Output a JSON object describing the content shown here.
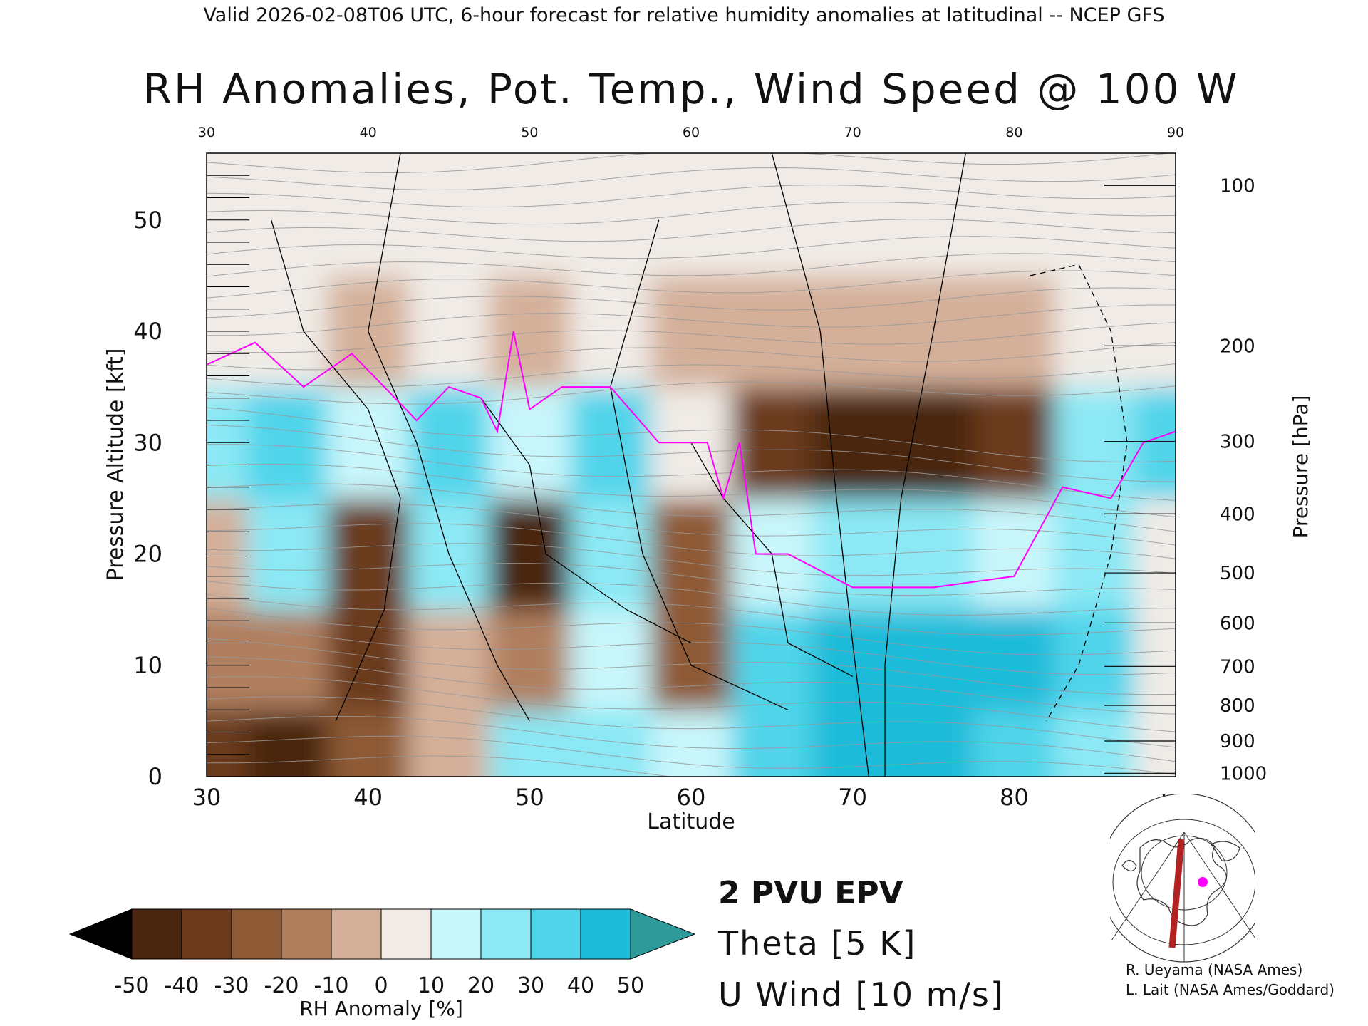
{
  "header": {
    "valid_line": "Valid 2026-02-08T06 UTC, 6-hour forecast for relative humidity anomalies at latitudinal -- NCEP GFS",
    "title": "RH Anomalies, Pot. Temp., Wind Speed @ 100 W"
  },
  "colors": {
    "dry_strong": "#000000",
    "dry": "#6b3a1c",
    "dry_light": "#c89c7c",
    "neutral": "#eef2f0",
    "moist_light": "#b8f2f8",
    "moist": "#4fd4ea",
    "moist_strong": "#0fa6c9",
    "epv": "#ff00ff",
    "theta": "#999999",
    "uwind": "#000000"
  },
  "chart_data": {
    "type": "heatmap",
    "xlabel": "Latitude",
    "ylabel": "Pressure Altitude [kft]",
    "y2label": "Pressure [hPa]",
    "xlim": [
      30,
      90
    ],
    "ylim": [
      0,
      56
    ],
    "x_ticks": [
      30,
      40,
      50,
      60,
      70,
      80,
      90
    ],
    "y_ticks": [
      0,
      10,
      20,
      30,
      40,
      50
    ],
    "pressure_ticks": [
      {
        "label": "100",
        "kft": 53.1
      },
      {
        "label": "200",
        "kft": 38.7
      },
      {
        "label": "300",
        "kft": 30.1
      },
      {
        "label": "400",
        "kft": 23.6
      },
      {
        "label": "500",
        "kft": 18.3
      },
      {
        "label": "600",
        "kft": 13.8
      },
      {
        "label": "700",
        "kft": 9.9
      },
      {
        "label": "800",
        "kft": 6.4
      },
      {
        "label": "900",
        "kft": 3.2
      },
      {
        "label": "1000",
        "kft": 0.3
      }
    ],
    "rh_anomaly_samples": {
      "latitudes": [
        30,
        35,
        40,
        45,
        50,
        55,
        60,
        65,
        70,
        75,
        80,
        85,
        90
      ],
      "levels_kft": [
        2,
        10,
        20,
        30,
        40,
        50
      ],
      "values_percent": [
        [
          -40,
          -45,
          -30,
          -10,
          20,
          25,
          10,
          30,
          40,
          45,
          30,
          20,
          0
        ],
        [
          -20,
          -15,
          -35,
          -10,
          -20,
          10,
          -30,
          35,
          40,
          45,
          40,
          30,
          0
        ],
        [
          -10,
          25,
          -40,
          25,
          -45,
          20,
          -25,
          10,
          20,
          20,
          10,
          20,
          0
        ],
        [
          25,
          30,
          10,
          30,
          10,
          30,
          5,
          -40,
          -45,
          -45,
          -40,
          20,
          30
        ],
        [
          0,
          0,
          -5,
          0,
          -5,
          0,
          -10,
          -10,
          -10,
          -10,
          -10,
          0,
          0
        ],
        [
          0,
          0,
          0,
          0,
          0,
          0,
          0,
          0,
          0,
          0,
          0,
          0,
          0
        ]
      ]
    },
    "epv_2pvu_line": {
      "name": "2 PVU EPV",
      "lat": [
        30,
        33,
        36,
        39,
        41,
        43,
        45,
        47,
        48,
        49,
        50,
        52,
        55,
        58,
        61,
        62,
        63,
        64,
        66,
        70,
        75,
        80,
        83,
        86,
        88,
        90
      ],
      "kft": [
        37,
        39,
        35,
        38,
        35,
        32,
        35,
        34,
        31,
        40,
        33,
        35,
        35,
        30,
        30,
        25,
        30,
        20,
        20,
        17,
        17,
        18,
        26,
        25,
        30,
        31
      ]
    },
    "colorbar": {
      "label": "RH Anomaly [%]",
      "tick_labels": [
        "-50",
        "-40",
        "-30",
        "-20",
        "-10",
        "0",
        "10",
        "20",
        "30",
        "40",
        "50"
      ],
      "colors": [
        "#000000",
        "#4a2510",
        "#6b3a1c",
        "#8e5a36",
        "#b07f5e",
        "#d4b09a",
        "#f0ebe6",
        "#c8f6fb",
        "#8be8f4",
        "#4fd4ea",
        "#1cbbd9",
        "#0a95b8",
        "#2e9a9a"
      ]
    },
    "legend": [
      {
        "label": "2 PVU EPV",
        "color": "#ff00ff"
      },
      {
        "label": "Theta [5 K]",
        "color": "#999999"
      },
      {
        "label": "U Wind [10 m/s]",
        "color": "#000000"
      }
    ]
  },
  "credits": {
    "line1": "R. Ueyama (NASA Ames)",
    "line2": "L. Lait (NASA Ames/Goddard)"
  }
}
